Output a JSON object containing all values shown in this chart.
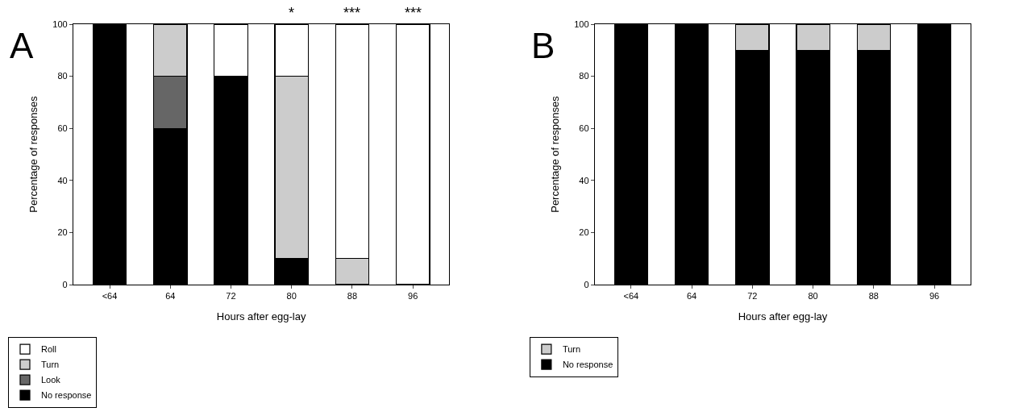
{
  "chart_data": [
    {
      "type": "bar",
      "title": "A",
      "xlabel": "Hours after egg-lay",
      "ylabel": "Percentage of responses",
      "categories": [
        "<64",
        "64",
        "72",
        "80",
        "88",
        "96"
      ],
      "stacked": true,
      "ylim": [
        0,
        100
      ],
      "yticks": [
        0,
        20,
        40,
        60,
        80,
        100
      ],
      "grid": false,
      "legend": "bottom left",
      "series": [
        {
          "name": "No response",
          "color": "#000000",
          "values": [
            100,
            60,
            80,
            10,
            0,
            0
          ]
        },
        {
          "name": "Look",
          "color": "#666666",
          "values": [
            0,
            20,
            0,
            0,
            0,
            0
          ]
        },
        {
          "name": "Turn",
          "color": "#cccccc",
          "values": [
            0,
            20,
            0,
            70,
            10,
            0
          ]
        },
        {
          "name": "Roll",
          "color": "#ffffff",
          "values": [
            0,
            0,
            20,
            20,
            90,
            100
          ]
        }
      ],
      "annotations": [
        {
          "text": "*",
          "x": "80",
          "y": 100
        },
        {
          "text": "***",
          "x": "88",
          "y": 100
        },
        {
          "text": "***",
          "x": "96",
          "y": 100
        }
      ]
    },
    {
      "type": "bar",
      "title": "B",
      "xlabel": "Hours after egg-lay",
      "ylabel": "Percentage of responses",
      "categories": [
        "<64",
        "64",
        "72",
        "80",
        "88",
        "96"
      ],
      "stacked": true,
      "ylim": [
        0,
        100
      ],
      "yticks": [
        0,
        20,
        40,
        60,
        80,
        100
      ],
      "grid": false,
      "legend": "bottom left",
      "series": [
        {
          "name": "No response",
          "color": "#000000",
          "values": [
            100,
            100,
            90,
            90,
            90,
            100
          ]
        },
        {
          "name": "Turn",
          "color": "#cccccc",
          "values": [
            0,
            0,
            10,
            10,
            10,
            0
          ]
        }
      ]
    }
  ]
}
